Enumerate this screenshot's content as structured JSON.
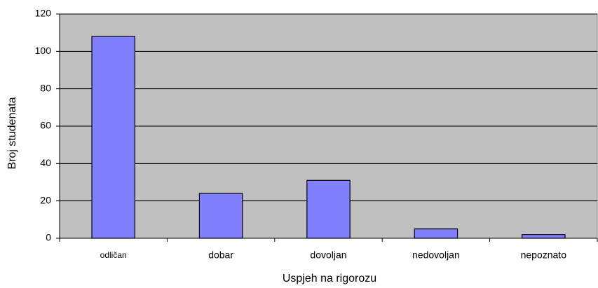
{
  "chart_data": {
    "type": "bar",
    "x_label": "Uspjeh na rigorozu",
    "y_label": "Broj studenata",
    "categories": [
      "odličan",
      "dobar",
      "dovoljan",
      "nedovoljan",
      "nepoznato"
    ],
    "values": [
      108,
      24,
      31,
      5,
      2
    ],
    "color": "#8080ff",
    "ylim": [
      0,
      120
    ],
    "yticks": [
      0,
      20,
      40,
      60,
      80,
      100,
      120
    ],
    "grid": true
  }
}
